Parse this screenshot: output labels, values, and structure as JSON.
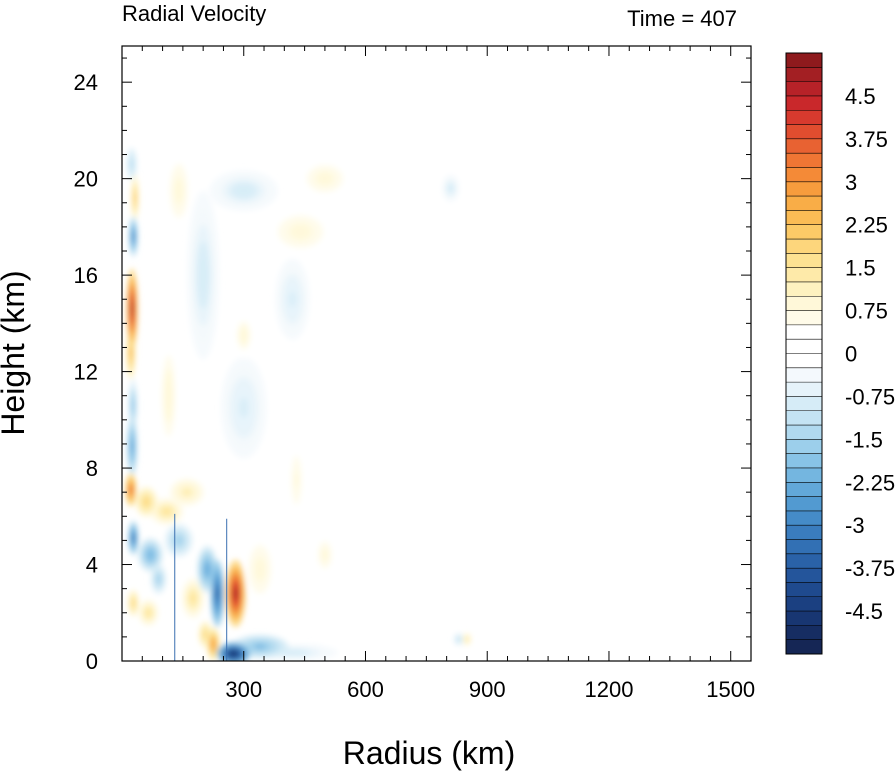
{
  "chart_data": {
    "type": "heatmap",
    "title_left": "Radial Velocity",
    "title_right": "Time = 407",
    "xlabel": "Radius (km)",
    "ylabel": "Height (km)",
    "xlim": [
      0,
      1550
    ],
    "ylim": [
      0,
      25.5
    ],
    "xticks": [
      {
        "value": 300,
        "label": "300"
      },
      {
        "value": 600,
        "label": "600"
      },
      {
        "value": 900,
        "label": "900"
      },
      {
        "value": 1200,
        "label": "1200"
      },
      {
        "value": 1500,
        "label": "1500"
      }
    ],
    "yticks": [
      {
        "value": 0,
        "label": "0"
      },
      {
        "value": 4,
        "label": "4"
      },
      {
        "value": 8,
        "label": "8"
      },
      {
        "value": 12,
        "label": "12"
      },
      {
        "value": 16,
        "label": "16"
      },
      {
        "value": 20,
        "label": "20"
      },
      {
        "value": 24,
        "label": "24"
      }
    ],
    "colorbar": {
      "min": -5.25,
      "max": 5.25,
      "step": 0.25,
      "labels": [
        {
          "value": 4.5,
          "label": "4.5"
        },
        {
          "value": 3.75,
          "label": "3.75"
        },
        {
          "value": 3,
          "label": "3"
        },
        {
          "value": 2.25,
          "label": "2.25"
        },
        {
          "value": 1.5,
          "label": "1.5"
        },
        {
          "value": 0.75,
          "label": "0.75"
        },
        {
          "value": 0,
          "label": "0"
        },
        {
          "value": -0.75,
          "label": "-0.75"
        },
        {
          "value": -1.5,
          "label": "-1.5"
        },
        {
          "value": -2.25,
          "label": "-2.25"
        },
        {
          "value": -3,
          "label": "-3"
        },
        {
          "value": -3.75,
          "label": "-3.75"
        },
        {
          "value": -4.5,
          "label": "-4.5"
        }
      ],
      "colors_high_to_low": [
        "#8e1a1d",
        "#a31f23",
        "#b72228",
        "#c9282b",
        "#d73a2e",
        "#e04d2f",
        "#e86232",
        "#ef7634",
        "#f48a37",
        "#f79c3d",
        "#f9ad47",
        "#fbbc55",
        "#fcca67",
        "#fdd67c",
        "#fde292",
        "#feeaa9",
        "#fef2c0",
        "#fff8d9",
        "#fffbe9",
        "#ffffff",
        "#ffffff",
        "#ffffff",
        "#f4f9fd",
        "#e6f3fa",
        "#d6ecf7",
        "#c4e3f3",
        "#b0d9ef",
        "#9ccfeb",
        "#88c3e6",
        "#74b6e0",
        "#62a8d9",
        "#529ad1",
        "#458bc8",
        "#3a7cbe",
        "#3270b4",
        "#2a62a8",
        "#24559b",
        "#1f4a8e",
        "#1b4081",
        "#183672",
        "#162d62",
        "#152655"
      ]
    },
    "fields": [
      {
        "r": 25,
        "z": 14.6,
        "sr": 10,
        "sz": 1.2,
        "v": 4.8
      },
      {
        "r": 22,
        "z": 12.8,
        "sr": 8,
        "sz": 0.8,
        "v": 2.6
      },
      {
        "r": 22,
        "z": 7.1,
        "sr": 10,
        "sz": 0.5,
        "v": 3.8
      },
      {
        "r": 25,
        "z": 8.9,
        "sr": 9,
        "sz": 0.9,
        "v": -2.6
      },
      {
        "r": 27,
        "z": 10.6,
        "sr": 8,
        "sz": 0.8,
        "v": -1.8
      },
      {
        "r": 28,
        "z": 17.6,
        "sr": 8,
        "sz": 0.6,
        "v": -3.0
      },
      {
        "r": 32,
        "z": 19.2,
        "sr": 7,
        "sz": 0.7,
        "v": 2.2
      },
      {
        "r": 24,
        "z": 20.6,
        "sr": 9,
        "sz": 0.5,
        "v": -1.4
      },
      {
        "r": 28,
        "z": 5.1,
        "sr": 9,
        "sz": 0.5,
        "v": -3.5
      },
      {
        "r": 28,
        "z": 2.4,
        "sr": 10,
        "sz": 0.4,
        "v": 2.0
      },
      {
        "r": 60,
        "z": 6.6,
        "sr": 20,
        "sz": 0.45,
        "v": 2.0
      },
      {
        "r": 70,
        "z": 4.4,
        "sr": 22,
        "sz": 0.5,
        "v": -2.2
      },
      {
        "r": 65,
        "z": 2.0,
        "sr": 18,
        "sz": 0.4,
        "v": 1.6
      },
      {
        "r": 90,
        "z": 3.4,
        "sr": 14,
        "sz": 0.45,
        "v": -1.6
      },
      {
        "r": 110,
        "z": 6.2,
        "sr": 30,
        "sz": 0.4,
        "v": 1.6
      },
      {
        "r": 140,
        "z": 5.0,
        "sr": 25,
        "sz": 0.5,
        "v": -1.5
      },
      {
        "r": 160,
        "z": 7.0,
        "sr": 30,
        "sz": 0.4,
        "v": 1.4
      },
      {
        "r": 175,
        "z": 2.6,
        "sr": 20,
        "sz": 0.6,
        "v": 1.6
      },
      {
        "r": 210,
        "z": 3.8,
        "sr": 18,
        "sz": 0.7,
        "v": -2.4
      },
      {
        "r": 235,
        "z": 2.8,
        "sr": 12,
        "sz": 1.0,
        "v": -3.8
      },
      {
        "r": 225,
        "z": 0.7,
        "sr": 12,
        "sz": 0.5,
        "v": 3.0
      },
      {
        "r": 205,
        "z": 1.1,
        "sr": 12,
        "sz": 0.4,
        "v": 2.0
      },
      {
        "r": 280,
        "z": 2.8,
        "sr": 18,
        "sz": 1.0,
        "v": 4.8
      },
      {
        "r": 275,
        "z": 0.3,
        "sr": 30,
        "sz": 0.35,
        "v": -4.8
      },
      {
        "r": 340,
        "z": 0.6,
        "sr": 50,
        "sz": 0.35,
        "v": -2.0
      },
      {
        "r": 420,
        "z": 0.35,
        "sr": 80,
        "sz": 0.25,
        "v": -0.9
      },
      {
        "r": 340,
        "z": 3.8,
        "sr": 25,
        "sz": 0.9,
        "v": 1.0
      },
      {
        "r": 500,
        "z": 4.4,
        "sr": 15,
        "sz": 0.5,
        "v": 1.0
      },
      {
        "r": 115,
        "z": 11.0,
        "sr": 20,
        "sz": 2.0,
        "v": 0.9
      },
      {
        "r": 200,
        "z": 16.0,
        "sr": 28,
        "sz": 2.5,
        "v": -0.9
      },
      {
        "r": 140,
        "z": 19.5,
        "sr": 20,
        "sz": 1.0,
        "v": 1.0
      },
      {
        "r": 300,
        "z": 13.5,
        "sr": 20,
        "sz": 0.7,
        "v": 0.9
      },
      {
        "r": 300,
        "z": 10.5,
        "sr": 40,
        "sz": 1.5,
        "v": -0.8
      },
      {
        "r": 430,
        "z": 7.5,
        "sr": 15,
        "sz": 1.2,
        "v": 0.8
      },
      {
        "r": 300,
        "z": 19.5,
        "sr": 60,
        "sz": 0.6,
        "v": -0.9
      },
      {
        "r": 440,
        "z": 17.8,
        "sr": 50,
        "sz": 0.6,
        "v": 1.0
      },
      {
        "r": 500,
        "z": 20.0,
        "sr": 40,
        "sz": 0.5,
        "v": 1.0
      },
      {
        "r": 420,
        "z": 15.0,
        "sr": 30,
        "sz": 1.2,
        "v": -0.8
      },
      {
        "r": 810,
        "z": 19.6,
        "sr": 15,
        "sz": 0.4,
        "v": -0.9
      },
      {
        "r": 830,
        "z": 0.9,
        "sr": 10,
        "sz": 0.2,
        "v": -1.2
      },
      {
        "r": 850,
        "z": 0.9,
        "sr": 8,
        "sz": 0.2,
        "v": 1.5
      },
      {
        "r": 470,
        "z": 0.4,
        "sr": 25,
        "sz": 0.2,
        "v": -0.8
      }
    ]
  }
}
